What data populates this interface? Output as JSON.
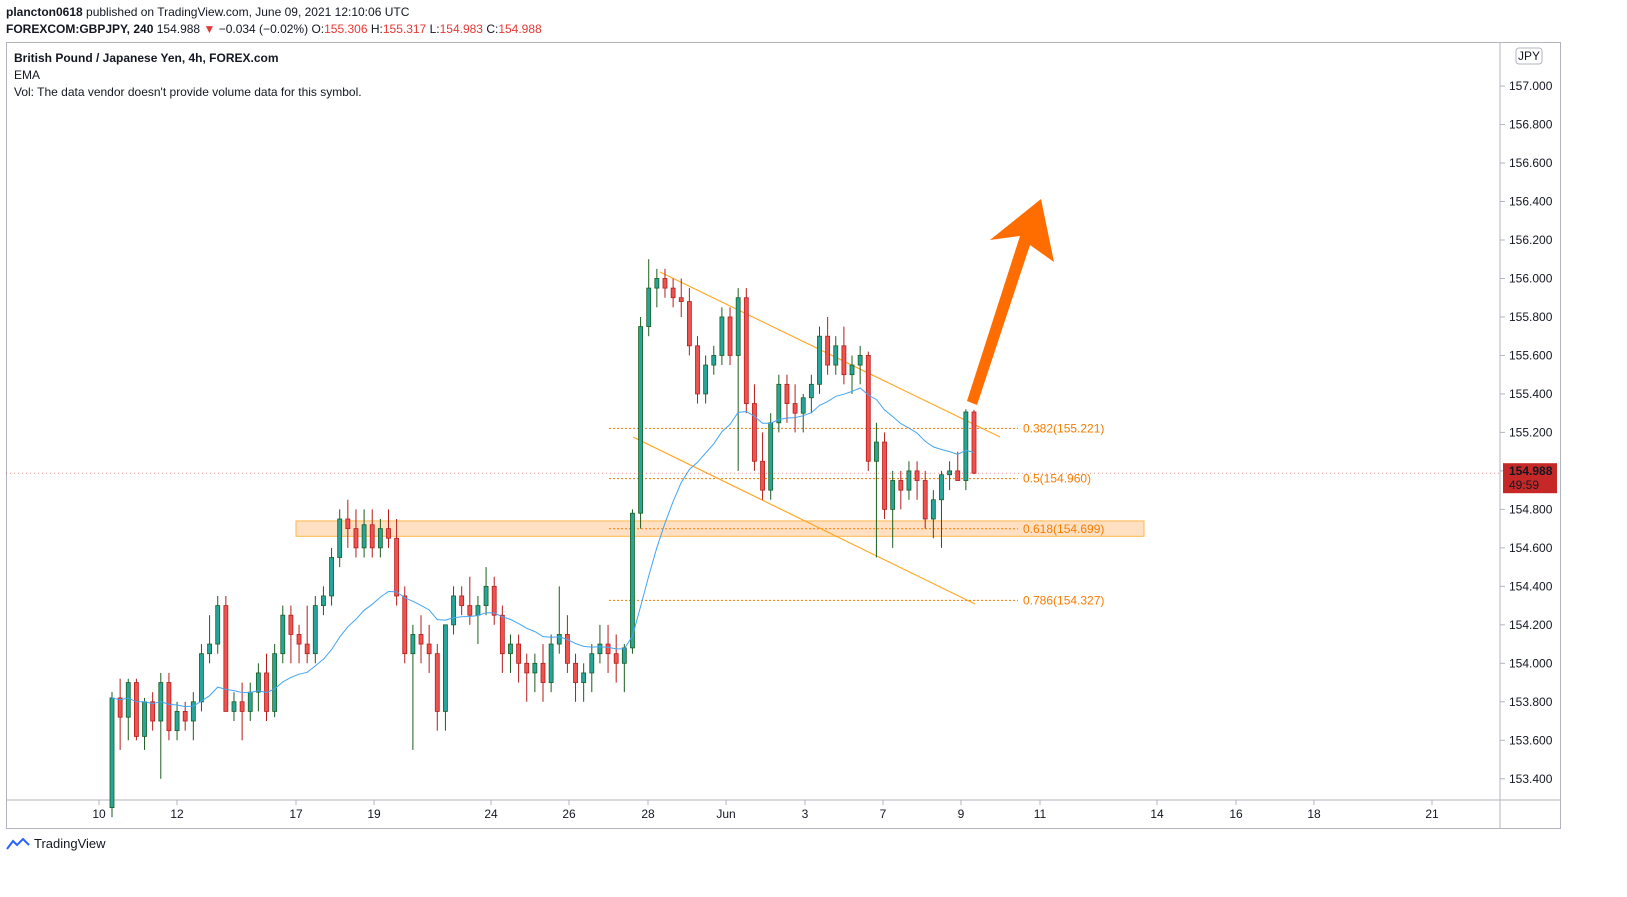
{
  "header": {
    "publisher": "plancton0618",
    "published_text": " published on TradingView.com, June 09, 2021 12:10:06 UTC",
    "symbol": "FOREXCOM:GBPJPY, 240",
    "last": "154.988",
    "change": "−0.034 (−0.02%)",
    "o_label": "O:",
    "o_value": "155.306",
    "h_label": "H:",
    "h_value": "155.317",
    "l_label": "L:",
    "l_value": "154.983",
    "c_label": "C:",
    "c_value": "154.988"
  },
  "legend": {
    "title": "British Pound / Japanese Yen, 4h, FOREX.com",
    "ema": "EMA",
    "vol": "Vol: The data vendor doesn't provide volume data for this symbol."
  },
  "price_axis": {
    "currency": "JPY",
    "last_price": "154.988",
    "countdown": "49:59"
  },
  "footer": {
    "brand": "TradingView"
  },
  "colors": {
    "up": "#26a69a",
    "down": "#ef5350",
    "wick": "#131722",
    "up_body": "#1b5e20",
    "down_body": "#b71c1c",
    "ema": "#42a5f5",
    "fib": "#f57c00",
    "zone": "#ffcc99",
    "arrow": "#ff6d00",
    "channel": "#ffa726",
    "price_tag": "#c62828"
  },
  "chart_data": {
    "type": "candlestick",
    "symbol": "GBPJPY",
    "timeframe": "4h",
    "ylim": [
      153.3,
      157.2
    ],
    "y_ticks": [
      "157.000",
      "156.800",
      "156.600",
      "156.400",
      "156.200",
      "156.000",
      "155.800",
      "155.600",
      "155.400",
      "155.200",
      "155.000",
      "154.800",
      "154.600",
      "154.400",
      "154.200",
      "154.000",
      "153.800",
      "153.600",
      "153.400"
    ],
    "x_ticks": [
      "10",
      "12",
      "17",
      "19",
      "24",
      "26",
      "28",
      "Jun",
      "3",
      "7",
      "9",
      "11",
      "14",
      "16",
      "18",
      "21"
    ],
    "fib_levels": [
      {
        "label": "0.382(155.221)",
        "value": 155.221
      },
      {
        "label": "0.5(154.960)",
        "value": 154.96
      },
      {
        "label": "0.618(154.699)",
        "value": 154.699
      },
      {
        "label": "0.786(154.327)",
        "value": 154.327
      }
    ],
    "support_zone": [
      154.66,
      154.74
    ],
    "candles_ohlc": [
      [
        153.25,
        153.85,
        153.2,
        153.82
      ],
      [
        153.82,
        153.92,
        153.55,
        153.72
      ],
      [
        153.72,
        153.92,
        153.6,
        153.9
      ],
      [
        153.9,
        153.92,
        153.6,
        153.62
      ],
      [
        153.62,
        153.82,
        153.55,
        153.8
      ],
      [
        153.8,
        153.85,
        153.65,
        153.7
      ],
      [
        153.7,
        153.95,
        153.4,
        153.9
      ],
      [
        153.9,
        153.95,
        153.6,
        153.65
      ],
      [
        153.65,
        153.8,
        153.6,
        153.75
      ],
      [
        153.75,
        153.8,
        153.65,
        153.7
      ],
      [
        153.7,
        153.85,
        153.6,
        153.8
      ],
      [
        153.8,
        154.1,
        153.75,
        154.05
      ],
      [
        154.05,
        154.25,
        154.0,
        154.1
      ],
      [
        154.1,
        154.35,
        154.05,
        154.3
      ],
      [
        154.3,
        154.35,
        153.75,
        153.75
      ],
      [
        153.75,
        153.85,
        153.7,
        153.8
      ],
      [
        153.8,
        153.9,
        153.6,
        153.75
      ],
      [
        153.75,
        153.9,
        153.7,
        153.85
      ],
      [
        153.85,
        154.0,
        153.75,
        153.95
      ],
      [
        153.95,
        154.05,
        153.7,
        153.75
      ],
      [
        153.75,
        154.1,
        153.72,
        154.05
      ],
      [
        154.05,
        154.3,
        154.0,
        154.25
      ],
      [
        154.25,
        154.3,
        154.0,
        154.15
      ],
      [
        154.15,
        154.2,
        154.0,
        154.1
      ],
      [
        154.1,
        154.3,
        154.0,
        154.05
      ],
      [
        154.05,
        154.35,
        154.0,
        154.3
      ],
      [
        154.3,
        154.4,
        154.25,
        154.35
      ],
      [
        154.35,
        154.6,
        154.3,
        154.55
      ],
      [
        154.55,
        154.8,
        154.5,
        154.75
      ],
      [
        154.75,
        154.85,
        154.6,
        154.7
      ],
      [
        154.7,
        154.8,
        154.55,
        154.6
      ],
      [
        154.6,
        154.8,
        154.55,
        154.72
      ],
      [
        154.72,
        154.8,
        154.55,
        154.6
      ],
      [
        154.6,
        154.75,
        154.55,
        154.7
      ],
      [
        154.7,
        154.8,
        154.6,
        154.65
      ],
      [
        154.65,
        154.75,
        154.3,
        154.35
      ],
      [
        154.35,
        154.4,
        154.0,
        154.05
      ],
      [
        154.05,
        154.2,
        153.55,
        154.15
      ],
      [
        154.15,
        154.25,
        154.0,
        154.1
      ],
      [
        154.1,
        154.2,
        153.95,
        154.05
      ],
      [
        154.05,
        154.1,
        153.65,
        153.75
      ],
      [
        153.75,
        154.2,
        153.65,
        154.2
      ],
      [
        154.2,
        154.4,
        154.15,
        154.35
      ],
      [
        154.35,
        154.4,
        154.25,
        154.3
      ],
      [
        154.3,
        154.45,
        154.2,
        154.25
      ],
      [
        154.25,
        154.35,
        154.1,
        154.3
      ],
      [
        154.3,
        154.5,
        154.25,
        154.4
      ],
      [
        154.4,
        154.45,
        154.2,
        154.25
      ],
      [
        154.25,
        154.3,
        153.95,
        154.05
      ],
      [
        154.05,
        154.15,
        153.95,
        154.1
      ],
      [
        154.1,
        154.15,
        153.9,
        154.0
      ],
      [
        154.0,
        154.05,
        153.8,
        153.95
      ],
      [
        153.95,
        154.05,
        153.85,
        154.0
      ],
      [
        154.0,
        154.1,
        153.8,
        153.9
      ],
      [
        153.9,
        154.15,
        153.85,
        154.1
      ],
      [
        154.1,
        154.4,
        154.05,
        154.15
      ],
      [
        154.15,
        154.25,
        153.95,
        154.0
      ],
      [
        154.0,
        154.05,
        153.8,
        153.9
      ],
      [
        153.9,
        154.0,
        153.8,
        153.95
      ],
      [
        153.95,
        154.1,
        153.85,
        154.05
      ],
      [
        154.05,
        154.2,
        154.0,
        154.1
      ],
      [
        154.1,
        154.2,
        153.95,
        154.05
      ],
      [
        154.05,
        154.15,
        153.9,
        154.0
      ],
      [
        154.0,
        154.1,
        153.85,
        154.08
      ],
      [
        154.08,
        154.8,
        154.05,
        154.78
      ],
      [
        154.78,
        155.8,
        154.7,
        155.75
      ],
      [
        155.75,
        156.1,
        155.7,
        155.95
      ],
      [
        155.95,
        156.05,
        155.85,
        156.0
      ],
      [
        156.0,
        156.05,
        155.9,
        155.95
      ],
      [
        155.95,
        156.0,
        155.85,
        155.9
      ],
      [
        155.9,
        156.0,
        155.8,
        155.88
      ],
      [
        155.88,
        155.95,
        155.6,
        155.65
      ],
      [
        155.65,
        155.7,
        155.35,
        155.4
      ],
      [
        155.4,
        155.6,
        155.35,
        155.55
      ],
      [
        155.55,
        155.65,
        155.5,
        155.6
      ],
      [
        155.6,
        155.85,
        155.55,
        155.8
      ],
      [
        155.8,
        155.85,
        155.55,
        155.6
      ],
      [
        155.6,
        155.95,
        155.0,
        155.9
      ],
      [
        155.9,
        155.95,
        155.3,
        155.35
      ],
      [
        155.35,
        155.45,
        155.0,
        155.05
      ],
      [
        155.05,
        155.2,
        154.85,
        154.9
      ],
      [
        154.9,
        155.3,
        154.85,
        155.25
      ],
      [
        155.25,
        155.5,
        155.2,
        155.45
      ],
      [
        155.45,
        155.5,
        155.25,
        155.35
      ],
      [
        155.35,
        155.45,
        155.2,
        155.3
      ],
      [
        155.3,
        155.4,
        155.2,
        155.38
      ],
      [
        155.38,
        155.5,
        155.3,
        155.45
      ],
      [
        155.45,
        155.75,
        155.4,
        155.7
      ],
      [
        155.7,
        155.8,
        155.5,
        155.55
      ],
      [
        155.55,
        155.7,
        155.5,
        155.65
      ],
      [
        155.65,
        155.75,
        155.45,
        155.5
      ],
      [
        155.5,
        155.6,
        155.4,
        155.55
      ],
      [
        155.55,
        155.65,
        155.45,
        155.6
      ],
      [
        155.6,
        155.62,
        155.0,
        155.05
      ],
      [
        155.05,
        155.25,
        154.55,
        155.15
      ],
      [
        155.15,
        155.2,
        154.75,
        154.8
      ],
      [
        154.8,
        155.0,
        154.6,
        154.95
      ],
      [
        154.95,
        155.0,
        154.8,
        154.9
      ],
      [
        154.9,
        155.05,
        154.85,
        155.0
      ],
      [
        155.0,
        155.05,
        154.85,
        154.95
      ],
      [
        154.95,
        155.0,
        154.7,
        154.75
      ],
      [
        154.75,
        154.9,
        154.65,
        154.85
      ],
      [
        154.85,
        155.0,
        154.6,
        154.98
      ],
      [
        154.98,
        155.05,
        154.9,
        155.0
      ],
      [
        155.0,
        155.1,
        154.95,
        154.95
      ],
      [
        154.95,
        155.32,
        154.9,
        155.306
      ],
      [
        155.306,
        155.317,
        154.983,
        154.988
      ]
    ]
  }
}
